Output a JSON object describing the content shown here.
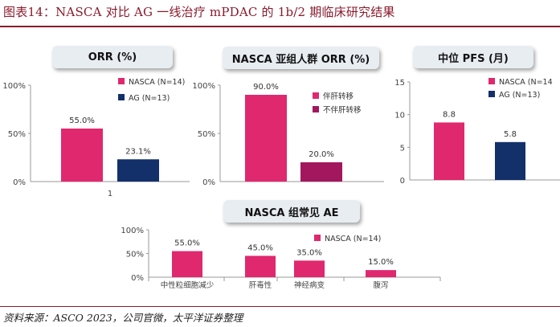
{
  "figure_title": "图表14：NASCA 对比 AG 一线治疗 mPDAC 的 1b/2 期临床研究结果",
  "source": "资料来源：ASCO 2023，公司官微，太平洋证券整理",
  "colors": {
    "pink": "#E0286F",
    "navy": "#13306A",
    "magenta": "#A3175E",
    "title_red": "#8B1A2B"
  },
  "chart_data": [
    {
      "type": "bar",
      "title": "ORR (%)",
      "categories": [
        "1"
      ],
      "ylim": [
        0,
        100
      ],
      "yticks": [
        "0%",
        "50%",
        "100%"
      ],
      "series": [
        {
          "name": "NASCA (N=14)",
          "values": [
            55.0
          ],
          "labels": [
            "55.0%"
          ]
        },
        {
          "name": "AG (N=13)",
          "values": [
            23.1
          ],
          "labels": [
            "23.1%"
          ]
        }
      ],
      "legend": "right"
    },
    {
      "type": "bar",
      "title": "NASCA 亚组人群 ORR (%)",
      "ylim": [
        0,
        100
      ],
      "yticks": [
        "0%",
        "50%",
        "100%"
      ],
      "series": [
        {
          "name": "伴肝转移",
          "values": [
            90.0
          ],
          "labels": [
            "90.0%"
          ]
        },
        {
          "name": "不伴肝转移",
          "values": [
            20.0
          ],
          "labels": [
            "20.0%"
          ]
        }
      ],
      "legend": "right"
    },
    {
      "type": "bar",
      "title": "中位 PFS (月)",
      "ylim": [
        0,
        15
      ],
      "yticks": [
        "0",
        "5",
        "10",
        "15"
      ],
      "series": [
        {
          "name": "NASCA (N=14",
          "values": [
            8.8
          ],
          "labels": [
            "8.8"
          ]
        },
        {
          "name": "AG (N=13)",
          "values": [
            5.8
          ],
          "labels": [
            "5.8"
          ]
        }
      ],
      "legend": "right"
    },
    {
      "type": "bar",
      "title": "NASCA 组常见 AE",
      "categories": [
        "中性粒细胞减少",
        "肝毒性",
        "神经病变",
        "腹泻"
      ],
      "ylim": [
        0,
        100
      ],
      "yticks": [
        "0%",
        "50%",
        "100%"
      ],
      "series": [
        {
          "name": "NASCA (N=14)",
          "values": [
            55.0,
            45.0,
            35.0,
            15.0
          ],
          "labels": [
            "55.0%",
            "45.0%",
            "35.0%",
            "15.0%"
          ]
        }
      ],
      "legend": "top-right"
    }
  ]
}
